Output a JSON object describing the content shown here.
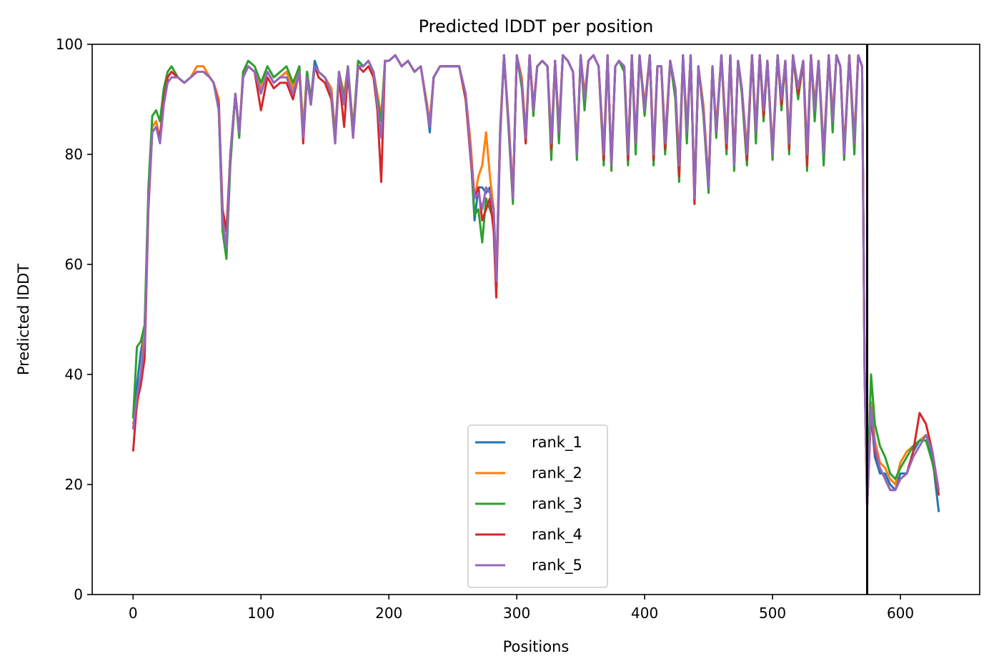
{
  "chart_data": {
    "type": "line",
    "title": "Predicted lDDT per position",
    "xlabel": "Positions",
    "ylabel": "Predicted lDDT",
    "xlim": [
      -32,
      662
    ],
    "ylim": [
      0,
      100
    ],
    "xticks": [
      0,
      100,
      200,
      300,
      400,
      500,
      600
    ],
    "yticks": [
      0,
      20,
      40,
      60,
      80,
      100
    ],
    "grid": false,
    "legend_position": "lower center",
    "vline_x": 574,
    "vline_color": "#000000",
    "x": [
      0,
      3,
      6,
      9,
      12,
      15,
      18,
      21,
      24,
      27,
      30,
      35,
      40,
      45,
      50,
      55,
      60,
      63,
      67,
      70,
      73,
      76,
      80,
      83,
      86,
      90,
      95,
      100,
      105,
      110,
      115,
      120,
      125,
      130,
      133,
      136,
      139,
      142,
      145,
      150,
      155,
      158,
      161,
      165,
      168,
      172,
      176,
      180,
      184,
      188,
      191,
      194,
      197,
      200,
      205,
      210,
      215,
      220,
      225,
      230,
      232,
      235,
      240,
      245,
      250,
      255,
      260,
      264,
      267,
      270,
      273,
      276,
      279,
      282,
      284,
      287,
      290,
      294,
      297,
      300,
      304,
      307,
      310,
      313,
      316,
      320,
      324,
      327,
      330,
      333,
      336,
      340,
      344,
      347,
      350,
      353,
      356,
      360,
      364,
      368,
      371,
      374,
      377,
      380,
      384,
      387,
      390,
      393,
      396,
      400,
      404,
      407,
      410,
      413,
      416,
      420,
      424,
      427,
      430,
      433,
      436,
      439,
      442,
      446,
      450,
      453,
      456,
      460,
      464,
      467,
      470,
      473,
      476,
      480,
      484,
      487,
      490,
      493,
      496,
      500,
      504,
      507,
      510,
      513,
      516,
      520,
      524,
      527,
      530,
      533,
      536,
      540,
      544,
      547,
      550,
      553,
      556,
      560,
      564,
      567,
      570,
      572,
      574,
      577,
      580,
      584,
      588,
      592,
      596,
      600,
      605,
      610,
      615,
      620,
      625,
      630
    ],
    "series": [
      {
        "name": "rank_1",
        "color": "#1f77b4",
        "values": [
          32,
          38,
          44,
          48,
          72,
          85,
          86,
          83,
          90,
          94,
          95,
          94,
          93,
          94,
          95,
          95,
          94,
          93,
          88,
          67,
          64,
          80,
          91,
          84,
          94,
          96,
          95,
          92,
          95,
          93,
          94,
          95,
          92,
          96,
          84,
          95,
          90,
          97,
          95,
          94,
          92,
          83,
          95,
          90,
          96,
          84,
          97,
          96,
          97,
          95,
          90,
          86,
          97,
          97,
          98,
          96,
          97,
          95,
          96,
          88,
          84,
          94,
          96,
          96,
          96,
          96,
          91,
          80,
          68,
          74,
          74,
          73,
          74,
          70,
          58,
          84,
          98,
          84,
          72,
          98,
          93,
          83,
          98,
          88,
          96,
          97,
          96,
          82,
          97,
          84,
          98,
          97,
          95,
          80,
          98,
          90,
          97,
          98,
          96,
          80,
          98,
          78,
          96,
          97,
          96,
          80,
          98,
          82,
          98,
          88,
          98,
          80,
          96,
          96,
          82,
          97,
          92,
          78,
          98,
          84,
          98,
          72,
          96,
          88,
          74,
          96,
          84,
          98,
          82,
          98,
          78,
          97,
          92,
          80,
          98,
          84,
          98,
          88,
          97,
          80,
          98,
          90,
          97,
          82,
          98,
          92,
          97,
          80,
          98,
          88,
          97,
          80,
          98,
          86,
          98,
          96,
          80,
          98,
          82,
          98,
          96,
          40,
          16,
          33,
          25,
          22,
          22,
          20,
          19,
          22,
          22,
          26,
          28,
          28,
          25,
          15
        ]
      },
      {
        "name": "rank_2",
        "color": "#ff7f0e",
        "values": [
          31,
          34,
          40,
          48,
          72,
          85,
          86,
          83,
          90,
          94,
          95,
          94,
          93,
          94,
          96,
          96,
          94,
          93,
          90,
          66,
          64,
          80,
          91,
          84,
          95,
          96,
          95,
          92,
          95,
          93,
          94,
          95,
          92,
          96,
          85,
          95,
          90,
          96,
          95,
          94,
          92,
          84,
          95,
          91,
          96,
          85,
          96,
          96,
          97,
          95,
          91,
          87,
          97,
          97,
          98,
          96,
          97,
          95,
          96,
          89,
          86,
          94,
          96,
          96,
          96,
          96,
          91,
          82,
          72,
          76,
          78,
          84,
          76,
          70,
          57,
          85,
          98,
          85,
          73,
          98,
          94,
          84,
          98,
          89,
          96,
          97,
          96,
          83,
          97,
          85,
          98,
          97,
          95,
          81,
          98,
          91,
          97,
          98,
          96,
          81,
          98,
          79,
          96,
          97,
          96,
          81,
          98,
          83,
          98,
          89,
          98,
          81,
          96,
          96,
          83,
          97,
          92,
          79,
          98,
          85,
          98,
          73,
          96,
          89,
          75,
          96,
          85,
          98,
          83,
          98,
          79,
          97,
          92,
          81,
          98,
          85,
          98,
          88,
          97,
          81,
          98,
          90,
          97,
          83,
          98,
          92,
          97,
          81,
          98,
          89,
          97,
          81,
          98,
          87,
          98,
          96,
          81,
          98,
          83,
          98,
          96,
          42,
          17,
          35,
          28,
          24,
          23,
          21,
          20,
          24,
          26,
          27,
          28,
          29,
          26,
          18
        ]
      },
      {
        "name": "rank_3",
        "color": "#2ca02c",
        "values": [
          32,
          45,
          46,
          49,
          74,
          87,
          88,
          86,
          92,
          95,
          96,
          94,
          93,
          94,
          95,
          95,
          94,
          93,
          88,
          66,
          61,
          78,
          91,
          83,
          95,
          97,
          96,
          93,
          96,
          94,
          95,
          96,
          93,
          96,
          83,
          95,
          90,
          96,
          95,
          94,
          91,
          83,
          95,
          90,
          96,
          84,
          97,
          96,
          97,
          95,
          90,
          86,
          97,
          97,
          98,
          96,
          97,
          95,
          96,
          88,
          85,
          94,
          96,
          96,
          96,
          96,
          90,
          80,
          69,
          70,
          64,
          72,
          70,
          68,
          56,
          84,
          98,
          83,
          71,
          98,
          92,
          82,
          98,
          87,
          96,
          97,
          96,
          79,
          97,
          82,
          98,
          97,
          95,
          79,
          98,
          88,
          97,
          98,
          96,
          78,
          98,
          77,
          96,
          97,
          95,
          78,
          98,
          80,
          98,
          87,
          98,
          78,
          96,
          96,
          80,
          97,
          90,
          75,
          98,
          82,
          98,
          71,
          96,
          87,
          73,
          96,
          83,
          98,
          80,
          98,
          77,
          97,
          91,
          78,
          98,
          82,
          98,
          86,
          97,
          79,
          98,
          88,
          97,
          80,
          98,
          90,
          97,
          77,
          98,
          86,
          97,
          78,
          98,
          84,
          98,
          96,
          79,
          98,
          80,
          98,
          96,
          42,
          17,
          40,
          31,
          27,
          25,
          22,
          21,
          23,
          25,
          27,
          28,
          28,
          24,
          18
        ]
      },
      {
        "name": "rank_4",
        "color": "#d62728",
        "values": [
          26,
          35,
          38,
          43,
          70,
          84,
          85,
          83,
          90,
          94,
          95,
          94,
          93,
          94,
          95,
          95,
          94,
          93,
          89,
          70,
          66,
          80,
          91,
          84,
          94,
          96,
          95,
          88,
          94,
          92,
          93,
          93,
          90,
          95,
          82,
          94,
          89,
          96,
          94,
          93,
          90,
          82,
          94,
          85,
          95,
          83,
          96,
          95,
          96,
          94,
          88,
          75,
          97,
          97,
          98,
          96,
          97,
          95,
          96,
          88,
          85,
          94,
          96,
          96,
          96,
          96,
          90,
          79,
          72,
          74,
          68,
          70,
          72,
          66,
          54,
          83,
          98,
          84,
          72,
          98,
          93,
          82,
          98,
          88,
          96,
          97,
          96,
          81,
          97,
          84,
          98,
          97,
          95,
          80,
          98,
          90,
          97,
          98,
          96,
          79,
          98,
          78,
          96,
          97,
          96,
          79,
          98,
          82,
          98,
          88,
          98,
          79,
          96,
          96,
          81,
          97,
          92,
          76,
          98,
          84,
          98,
          71,
          96,
          88,
          74,
          96,
          84,
          98,
          81,
          98,
          78,
          97,
          92,
          79,
          98,
          84,
          98,
          87,
          97,
          80,
          98,
          89,
          97,
          81,
          98,
          91,
          97,
          78,
          98,
          88,
          97,
          80,
          98,
          86,
          98,
          96,
          80,
          98,
          82,
          98,
          96,
          41,
          16,
          33,
          26,
          23,
          21,
          19,
          19,
          21,
          22,
          26,
          33,
          31,
          26,
          18
        ]
      },
      {
        "name": "rank_5",
        "color": "#9467bd",
        "values": [
          30,
          36,
          40,
          46,
          71,
          84,
          85,
          82,
          89,
          93,
          94,
          94,
          93,
          94,
          95,
          95,
          94,
          93,
          88,
          68,
          63,
          80,
          91,
          84,
          94,
          96,
          95,
          91,
          95,
          93,
          94,
          94,
          91,
          95,
          83,
          94,
          89,
          96,
          95,
          94,
          91,
          82,
          95,
          89,
          96,
          83,
          96,
          96,
          97,
          95,
          89,
          83,
          97,
          97,
          98,
          96,
          97,
          95,
          96,
          88,
          85,
          94,
          96,
          96,
          96,
          96,
          91,
          80,
          72,
          73,
          70,
          74,
          73,
          70,
          57,
          84,
          98,
          84,
          72,
          98,
          93,
          83,
          98,
          88,
          96,
          97,
          96,
          82,
          97,
          84,
          98,
          97,
          95,
          80,
          98,
          90,
          97,
          98,
          96,
          80,
          98,
          78,
          96,
          97,
          96,
          80,
          98,
          82,
          98,
          88,
          98,
          80,
          96,
          96,
          82,
          97,
          92,
          78,
          98,
          84,
          98,
          72,
          96,
          88,
          74,
          96,
          84,
          98,
          82,
          98,
          78,
          97,
          92,
          80,
          98,
          84,
          98,
          88,
          97,
          80,
          98,
          90,
          97,
          82,
          98,
          92,
          97,
          80,
          98,
          88,
          97,
          80,
          98,
          86,
          98,
          96,
          80,
          98,
          82,
          98,
          96,
          41,
          16,
          34,
          27,
          23,
          21,
          19,
          19,
          21,
          22,
          25,
          27,
          29,
          26,
          19
        ]
      }
    ]
  }
}
